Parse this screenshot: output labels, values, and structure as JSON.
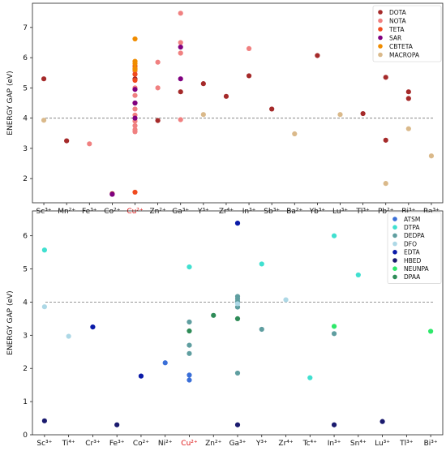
{
  "chart_data": [
    {
      "type": "scatter",
      "title": "",
      "xlabel": "",
      "ylabel": "ENERGY GAP (eV)",
      "ylim": [
        1.2,
        7.8
      ],
      "yticks": [
        2,
        3,
        4,
        5,
        6,
        7
      ],
      "reference_line": 4.0,
      "categories": [
        {
          "label": "Sc³⁺",
          "color": "#111111"
        },
        {
          "label": "Mn²⁺",
          "color": "#111111"
        },
        {
          "label": "Fe³⁺",
          "color": "#111111"
        },
        {
          "label": "Co²⁺",
          "color": "#111111"
        },
        {
          "label": "Cu²⁺",
          "color": "#dd1111"
        },
        {
          "label": "Zn²⁺",
          "color": "#111111"
        },
        {
          "label": "Ga³⁺",
          "color": "#111111"
        },
        {
          "label": "Y³⁺",
          "color": "#111111"
        },
        {
          "label": "Zr⁴⁺",
          "color": "#111111"
        },
        {
          "label": "In³⁺",
          "color": "#111111"
        },
        {
          "label": "Sb³⁺",
          "color": "#111111"
        },
        {
          "label": "Ba²⁺",
          "color": "#111111"
        },
        {
          "label": "Yb³⁺",
          "color": "#111111"
        },
        {
          "label": "Lu³⁺",
          "color": "#111111"
        },
        {
          "label": "Tl³⁺",
          "color": "#111111"
        },
        {
          "label": "Pb²⁺",
          "color": "#111111"
        },
        {
          "label": "Bi³⁺",
          "color": "#111111"
        },
        {
          "label": "Ra³⁺",
          "color": "#111111"
        }
      ],
      "legend_position": "top-right",
      "series": [
        {
          "name": "DOTA",
          "color": "#a52a2a",
          "points": [
            [
              "Sc³⁺",
              5.3
            ],
            [
              "Mn²⁺",
              3.25
            ],
            [
              "Co²⁺",
              1.5
            ],
            [
              "Cu²⁺",
              5.3
            ],
            [
              "Zn²⁺",
              3.92
            ],
            [
              "Ga³⁺",
              4.87
            ],
            [
              "Y³⁺",
              5.14
            ],
            [
              "Zr⁴⁺",
              4.72
            ],
            [
              "In³⁺",
              5.4
            ],
            [
              "Sb³⁺",
              4.3
            ],
            [
              "Yb³⁺",
              6.07
            ],
            [
              "Tl³⁺",
              4.15
            ],
            [
              "Pb²⁺",
              5.35
            ],
            [
              "Pb²⁺",
              3.27
            ],
            [
              "Bi³⁺",
              4.87
            ],
            [
              "Bi³⁺",
              4.65
            ]
          ]
        },
        {
          "name": "NOTA",
          "color": "#f08080",
          "points": [
            [
              "Fe³⁺",
              3.15
            ],
            [
              "Cu²⁺",
              3.55
            ],
            [
              "Cu²⁺",
              3.62
            ],
            [
              "Cu²⁺",
              3.75
            ],
            [
              "Cu²⁺",
              3.9
            ],
            [
              "Cu²⁺",
              4.1
            ],
            [
              "Cu²⁺",
              4.3
            ],
            [
              "Cu²⁺",
              4.5
            ],
            [
              "Cu²⁺",
              4.75
            ],
            [
              "Cu²⁺",
              5.0
            ],
            [
              "Cu²⁺",
              5.55
            ],
            [
              "Zn²⁺",
              5.85
            ],
            [
              "Zn²⁺",
              5.0
            ],
            [
              "Ga³⁺",
              7.47
            ],
            [
              "Ga³⁺",
              6.5
            ],
            [
              "Ga³⁺",
              6.15
            ],
            [
              "Ga³⁺",
              3.95
            ],
            [
              "In³⁺",
              6.3
            ]
          ]
        },
        {
          "name": "TETA",
          "color": "#f04a1e",
          "points": [
            [
              "Cu²⁺",
              1.55
            ],
            [
              "Cu²⁺",
              5.72
            ],
            [
              "Cu²⁺",
              5.45
            ],
            [
              "Cu²⁺",
              5.25
            ]
          ]
        },
        {
          "name": "SAR",
          "color": "#800080",
          "points": [
            [
              "Co²⁺",
              1.48
            ],
            [
              "Cu²⁺",
              4.0
            ],
            [
              "Cu²⁺",
              4.5
            ],
            [
              "Cu²⁺",
              4.95
            ],
            [
              "Ga³⁺",
              6.35
            ],
            [
              "Ga³⁺",
              5.3
            ]
          ]
        },
        {
          "name": "CBTETA",
          "color": "#f08c00",
          "points": [
            [
              "Cu²⁺",
              6.62
            ],
            [
              "Cu²⁺",
              5.88
            ],
            [
              "Cu²⁺",
              5.8
            ],
            [
              "Cu²⁺",
              5.65
            ],
            [
              "Cu²⁺",
              5.6
            ]
          ]
        },
        {
          "name": "MACROPA",
          "color": "#dab98a",
          "points": [
            [
              "Sc³⁺",
              3.93
            ],
            [
              "Y³⁺",
              4.12
            ],
            [
              "Ba²⁺",
              3.48
            ],
            [
              "Lu³⁺",
              4.12
            ],
            [
              "Pb²⁺",
              1.84
            ],
            [
              "Bi³⁺",
              3.65
            ],
            [
              "Ra³⁺",
              2.75
            ]
          ]
        }
      ]
    },
    {
      "type": "scatter",
      "title": "",
      "xlabel": "",
      "ylabel": "ENERGY GAP (eV)",
      "ylim": [
        0,
        6.75
      ],
      "yticks": [
        0,
        1,
        2,
        3,
        4,
        5,
        6
      ],
      "reference_line": 4.0,
      "categories": [
        {
          "label": "Sc³⁺",
          "color": "#111111"
        },
        {
          "label": "Ti⁴⁺",
          "color": "#111111"
        },
        {
          "label": "Cr³⁺",
          "color": "#111111"
        },
        {
          "label": "Fe³⁺",
          "color": "#111111"
        },
        {
          "label": "Co²⁺",
          "color": "#111111"
        },
        {
          "label": "Ni²⁺",
          "color": "#111111"
        },
        {
          "label": "Cu²⁺",
          "color": "#dd1111"
        },
        {
          "label": "Zn²⁺",
          "color": "#111111"
        },
        {
          "label": "Ga³⁺",
          "color": "#111111"
        },
        {
          "label": "Y³⁺",
          "color": "#111111"
        },
        {
          "label": "Zr⁴⁺",
          "color": "#111111"
        },
        {
          "label": "Tc⁴⁺",
          "color": "#111111"
        },
        {
          "label": "In³⁺",
          "color": "#111111"
        },
        {
          "label": "Sn⁴⁺",
          "color": "#111111"
        },
        {
          "label": "Lu³⁺",
          "color": "#111111"
        },
        {
          "label": "Tl³⁺",
          "color": "#111111"
        },
        {
          "label": "Bi³⁺",
          "color": "#111111"
        }
      ],
      "legend_position": "top-right",
      "series": [
        {
          "name": "ATSM",
          "color": "#3a6fd8",
          "points": [
            [
              "Ni²⁺",
              2.17
            ],
            [
              "Cu²⁺",
              1.8
            ],
            [
              "Cu²⁺",
              1.65
            ]
          ]
        },
        {
          "name": "DTPA",
          "color": "#40e0d0",
          "points": [
            [
              "Sc³⁺",
              5.57
            ],
            [
              "Cu²⁺",
              5.06
            ],
            [
              "Y³⁺",
              5.15
            ],
            [
              "Tc⁴⁺",
              1.72
            ],
            [
              "In³⁺",
              6.0
            ],
            [
              "Sn⁴⁺",
              4.82
            ]
          ]
        },
        {
          "name": "DEDPA",
          "color": "#5f9ea0",
          "points": [
            [
              "Cu²⁺",
              3.4
            ],
            [
              "Cu²⁺",
              2.7
            ],
            [
              "Cu²⁺",
              2.45
            ],
            [
              "Ga³⁺",
              4.17
            ],
            [
              "Ga³⁺",
              4.1
            ],
            [
              "Ga³⁺",
              4.02
            ],
            [
              "Ga³⁺",
              3.85
            ],
            [
              "Ga³⁺",
              1.86
            ],
            [
              "Y³⁺",
              3.18
            ],
            [
              "In³⁺",
              3.05
            ]
          ]
        },
        {
          "name": "DFO",
          "color": "#add8e6",
          "points": [
            [
              "Sc³⁺",
              3.86
            ],
            [
              "Ti⁴⁺",
              2.97
            ],
            [
              "Ga³⁺",
              3.95
            ],
            [
              "Zr⁴⁺",
              4.07
            ]
          ]
        },
        {
          "name": "EDTA",
          "color": "#0a1aa8",
          "points": [
            [
              "Cr³⁺",
              3.25
            ],
            [
              "Co²⁺",
              1.77
            ],
            [
              "Ga³⁺",
              6.38
            ]
          ]
        },
        {
          "name": "HBED",
          "color": "#1a1a6e",
          "points": [
            [
              "Sc³⁺",
              0.42
            ],
            [
              "Fe³⁺",
              0.3
            ],
            [
              "Ga³⁺",
              0.3
            ],
            [
              "In³⁺",
              0.3
            ],
            [
              "Lu³⁺",
              0.4
            ]
          ]
        },
        {
          "name": "NEUNPA",
          "color": "#2ee86a",
          "points": [
            [
              "In³⁺",
              3.27
            ],
            [
              "Bi³⁺",
              3.12
            ]
          ]
        },
        {
          "name": "DPAA",
          "color": "#2e8b57",
          "points": [
            [
              "Cu²⁺",
              3.13
            ],
            [
              "Zn²⁺",
              3.6
            ],
            [
              "Ga³⁺",
              3.5
            ]
          ]
        }
      ]
    }
  ]
}
